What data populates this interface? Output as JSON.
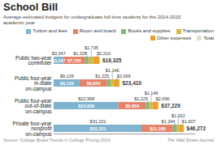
{
  "chart_data": {
    "type": "bar",
    "orientation": "horizontal",
    "stacked": true,
    "data_labels": true,
    "tick_labels": "y",
    "grid": false,
    "legend": "upper right",
    "title": "School Bill",
    "subtitle": "Average estimated budgets for undergraduate full-time students for the 2014-2015\nacademic year",
    "source": "Source: College Board Trends in College Pricing 2014",
    "credit": "The Wall Street Journal",
    "categories": [
      "Public two-year\ncommuter",
      "Public four-year\nin-state\non-campus",
      "Public four-year\nout-of-state\non-campus",
      "Private four-year\nnonprofit\non-campus"
    ],
    "xlim": [
      0,
      50000
    ],
    "series": [
      {
        "name": "Tuition and fees",
        "color": "#7fb3d0",
        "values": [
          3347,
          9139,
          22958,
          31231
        ],
        "value_labels": [
          "$3,347",
          "$9,139",
          "$22,958",
          "$31,231"
        ]
      },
      {
        "name": "Room and board",
        "color": "#e5836a",
        "values": [
          7705,
          9804,
          9804,
          11188
        ],
        "value_labels": [
          "$7,705",
          "$9,804",
          "$9,804",
          "$11,188"
        ]
      },
      {
        "name": "Books and supplies",
        "color": "#7db87a",
        "values": [
          1328,
          1225,
          1225,
          1244
        ],
        "value_labels": [
          "$1,328",
          "$1,225",
          "$1,225",
          "$1,244"
        ]
      },
      {
        "name": "Transportation",
        "color": "#d4b84a",
        "values": [
          1735,
          1146,
          1146,
          1002
        ],
        "value_labels": [
          "$1,735",
          "$1,146",
          "$1,146",
          "$1,002"
        ]
      },
      {
        "name": "Other expenses",
        "color": "#e8a030",
        "values": [
          2210,
          2096,
          2096,
          1607
        ],
        "value_labels": [
          "$2,210",
          "$2,096",
          "$2,096",
          "$1,607"
        ]
      }
    ],
    "total": {
      "name": "Total",
      "color": "#e0e0d8",
      "values": [
        16325,
        23410,
        37229,
        46272
      ],
      "value_labels": [
        "$16,325",
        "$23,410",
        "$37,229",
        "$46,272"
      ]
    }
  }
}
